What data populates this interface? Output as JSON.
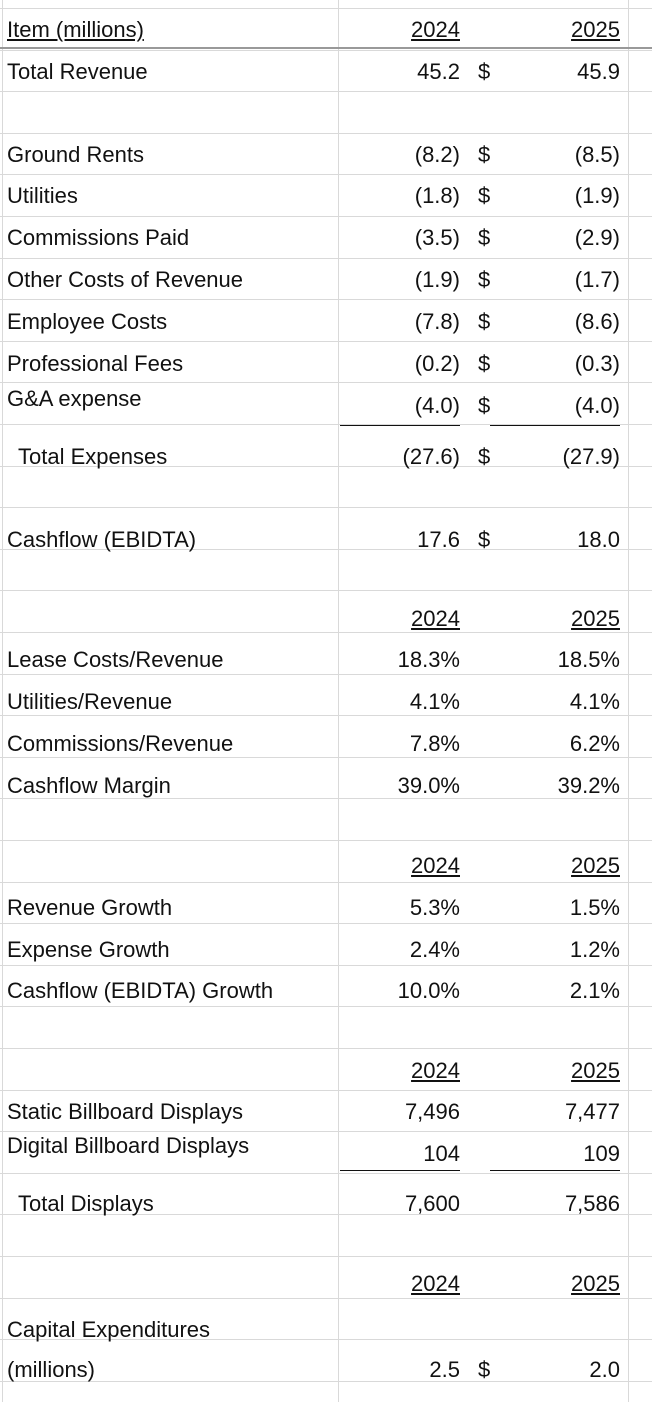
{
  "table": {
    "rows": [
      {
        "label": "Item (millions)",
        "y2024": "2024",
        "y2025": "2025"
      },
      {
        "label": "Total Revenue",
        "y2024": "45.2",
        "currency": "$",
        "y2025": "45.9"
      },
      {
        "label": "Ground Rents",
        "y2024": "(8.2)",
        "currency": "$",
        "y2025": "(8.5)"
      },
      {
        "label": "Utilities",
        "y2024": "(1.8)",
        "currency": "$",
        "y2025": "(1.9)"
      },
      {
        "label": "Commissions Paid",
        "y2024": "(3.5)",
        "currency": "$",
        "y2025": "(2.9)"
      },
      {
        "label": "Other Costs of Revenue",
        "y2024": "(1.9)",
        "currency": "$",
        "y2025": "(1.7)"
      },
      {
        "label": "Employee Costs",
        "y2024": "(7.8)",
        "currency": "$",
        "y2025": "(8.6)"
      },
      {
        "label": "Professional Fees",
        "y2024": "(0.2)",
        "currency": "$",
        "y2025": "(0.3)"
      },
      {
        "label": "G&A expense",
        "y2024": "(4.0)",
        "currency": "$",
        "y2025": "(4.0)"
      },
      {
        "label": "Total Expenses",
        "y2024": "(27.6)",
        "currency": "$",
        "y2025": "(27.9)"
      },
      {
        "label": "Cashflow (EBIDTA)",
        "y2024": "17.6",
        "currency": "$",
        "y2025": "18.0"
      },
      {
        "y2024": "2024",
        "y2025": "2025"
      },
      {
        "label": "Lease Costs/Revenue",
        "y2024": "18.3%",
        "y2025": "18.5%"
      },
      {
        "label": "Utilities/Revenue",
        "y2024": "4.1%",
        "y2025": "4.1%"
      },
      {
        "label": "Commissions/Revenue",
        "y2024": "7.8%",
        "y2025": "6.2%"
      },
      {
        "label": "Cashflow Margin",
        "y2024": "39.0%",
        "y2025": "39.2%"
      },
      {
        "y2024": "2024",
        "y2025": "2025"
      },
      {
        "label": "Revenue Growth",
        "y2024": "5.3%",
        "y2025": "1.5%"
      },
      {
        "label": "Expense Growth",
        "y2024": "2.4%",
        "y2025": "1.2%"
      },
      {
        "label": "Cashflow (EBIDTA) Growth",
        "y2024": "10.0%",
        "y2025": "2.1%"
      },
      {
        "y2024": "2024",
        "y2025": "2025"
      },
      {
        "label": "Static Billboard Displays",
        "y2024": "7,496",
        "y2025": "7,477"
      },
      {
        "label": "Digital Billboard Displays",
        "y2024": "104",
        "y2025": "109"
      },
      {
        "label": "Total Displays",
        "y2024": "7,600",
        "y2025": "7,586"
      },
      {
        "y2024": "2024",
        "y2025": "2025"
      },
      {
        "label": "Capital Expenditures (millions)",
        "y2024": "2.5",
        "currency": "$",
        "y2025": "2.0"
      }
    ]
  }
}
